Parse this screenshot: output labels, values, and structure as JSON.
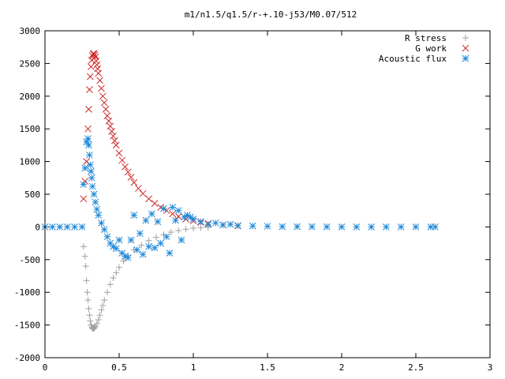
{
  "chart_data": {
    "type": "scatter",
    "title": "m1/n1.5/q1.5/r-+.10-j53/M0.07/512",
    "xlabel": "",
    "ylabel": "",
    "xlim": [
      0,
      3
    ],
    "ylim": [
      -2000,
      3000
    ],
    "x_ticks": [
      0,
      0.5,
      1,
      1.5,
      2,
      2.5,
      3
    ],
    "x_tick_labels": [
      "0",
      "0.5",
      "1",
      "1.5",
      "2",
      "2.5",
      "3"
    ],
    "y_ticks": [
      -2000,
      -1500,
      -1000,
      -500,
      0,
      500,
      1000,
      1500,
      2000,
      2500,
      3000
    ],
    "y_tick_labels": [
      "-2000",
      "-1500",
      "-1000",
      "-500",
      "0",
      "500",
      "1000",
      "1500",
      "2000",
      "2500",
      "3000"
    ],
    "grid": false,
    "legend_position": "top-right",
    "series": [
      {
        "name": "R stress",
        "marker": "plus",
        "color": "#a0a0a0",
        "x": [
          0.26,
          0.27,
          0.275,
          0.28,
          0.285,
          0.29,
          0.295,
          0.3,
          0.305,
          0.31,
          0.315,
          0.32,
          0.325,
          0.33,
          0.335,
          0.34,
          0.35,
          0.36,
          0.37,
          0.38,
          0.39,
          0.4,
          0.42,
          0.44,
          0.46,
          0.48,
          0.5,
          0.53,
          0.56,
          0.6,
          0.65,
          0.7,
          0.75,
          0.8,
          0.85,
          0.9,
          0.95,
          1.0,
          1.05,
          1.1
        ],
        "y": [
          -300,
          -450,
          -600,
          -820,
          -1000,
          -1120,
          -1250,
          -1350,
          -1440,
          -1500,
          -1530,
          -1550,
          -1560,
          -1550,
          -1540,
          -1520,
          -1480,
          -1420,
          -1350,
          -1270,
          -1200,
          -1120,
          -1000,
          -880,
          -780,
          -700,
          -620,
          -520,
          -440,
          -350,
          -280,
          -210,
          -160,
          -120,
          -80,
          -55,
          -35,
          -20,
          -10,
          -5
        ]
      },
      {
        "name": "G work",
        "marker": "cross",
        "color": "#cc2a2a",
        "x": [
          0.26,
          0.27,
          0.28,
          0.29,
          0.295,
          0.3,
          0.305,
          0.31,
          0.315,
          0.32,
          0.325,
          0.33,
          0.335,
          0.34,
          0.345,
          0.35,
          0.355,
          0.36,
          0.37,
          0.38,
          0.39,
          0.4,
          0.41,
          0.42,
          0.43,
          0.44,
          0.45,
          0.46,
          0.47,
          0.48,
          0.5,
          0.52,
          0.54,
          0.56,
          0.58,
          0.6,
          0.63,
          0.66,
          0.7,
          0.74,
          0.78,
          0.82,
          0.86,
          0.9,
          0.95,
          1.0,
          1.05,
          1.1,
          1.2,
          1.3
        ],
        "y": [
          430,
          700,
          1000,
          1500,
          1800,
          2100,
          2300,
          2450,
          2550,
          2620,
          2650,
          2650,
          2630,
          2600,
          2540,
          2480,
          2420,
          2350,
          2240,
          2120,
          2000,
          1900,
          1800,
          1700,
          1620,
          1540,
          1460,
          1390,
          1320,
          1250,
          1130,
          1020,
          920,
          840,
          760,
          680,
          590,
          510,
          430,
          360,
          300,
          250,
          200,
          160,
          120,
          90,
          70,
          50,
          30,
          15
        ]
      },
      {
        "name": "Acoustic flux",
        "marker": "star",
        "color": "#1e88d8",
        "x": [
          0.0,
          0.05,
          0.1,
          0.15,
          0.2,
          0.25,
          0.26,
          0.27,
          0.28,
          0.29,
          0.295,
          0.3,
          0.305,
          0.31,
          0.315,
          0.32,
          0.33,
          0.34,
          0.35,
          0.36,
          0.38,
          0.4,
          0.42,
          0.44,
          0.46,
          0.48,
          0.5,
          0.52,
          0.54,
          0.56,
          0.58,
          0.6,
          0.62,
          0.64,
          0.66,
          0.68,
          0.7,
          0.72,
          0.74,
          0.76,
          0.78,
          0.8,
          0.82,
          0.84,
          0.86,
          0.88,
          0.9,
          0.92,
          0.94,
          0.96,
          0.98,
          1.0,
          1.05,
          1.1,
          1.15,
          1.2,
          1.25,
          1.3,
          1.4,
          1.5,
          1.6,
          1.7,
          1.8,
          1.9,
          2.0,
          2.1,
          2.2,
          2.3,
          2.4,
          2.5,
          2.6,
          2.63
        ],
        "y": [
          0,
          0,
          0,
          0,
          0,
          0,
          650,
          900,
          1300,
          1350,
          1250,
          1100,
          950,
          850,
          750,
          620,
          500,
          380,
          270,
          180,
          60,
          -40,
          -150,
          -250,
          -300,
          -330,
          -200,
          -400,
          -450,
          -470,
          -200,
          180,
          -350,
          -100,
          -420,
          100,
          -300,
          200,
          -320,
          80,
          -250,
          280,
          -150,
          -400,
          300,
          100,
          250,
          -200,
          150,
          180,
          150,
          120,
          80,
          40,
          60,
          30,
          40,
          20,
          15,
          10,
          5,
          5,
          3,
          2,
          0,
          0,
          0,
          0,
          0,
          0,
          0,
          0
        ]
      }
    ]
  }
}
